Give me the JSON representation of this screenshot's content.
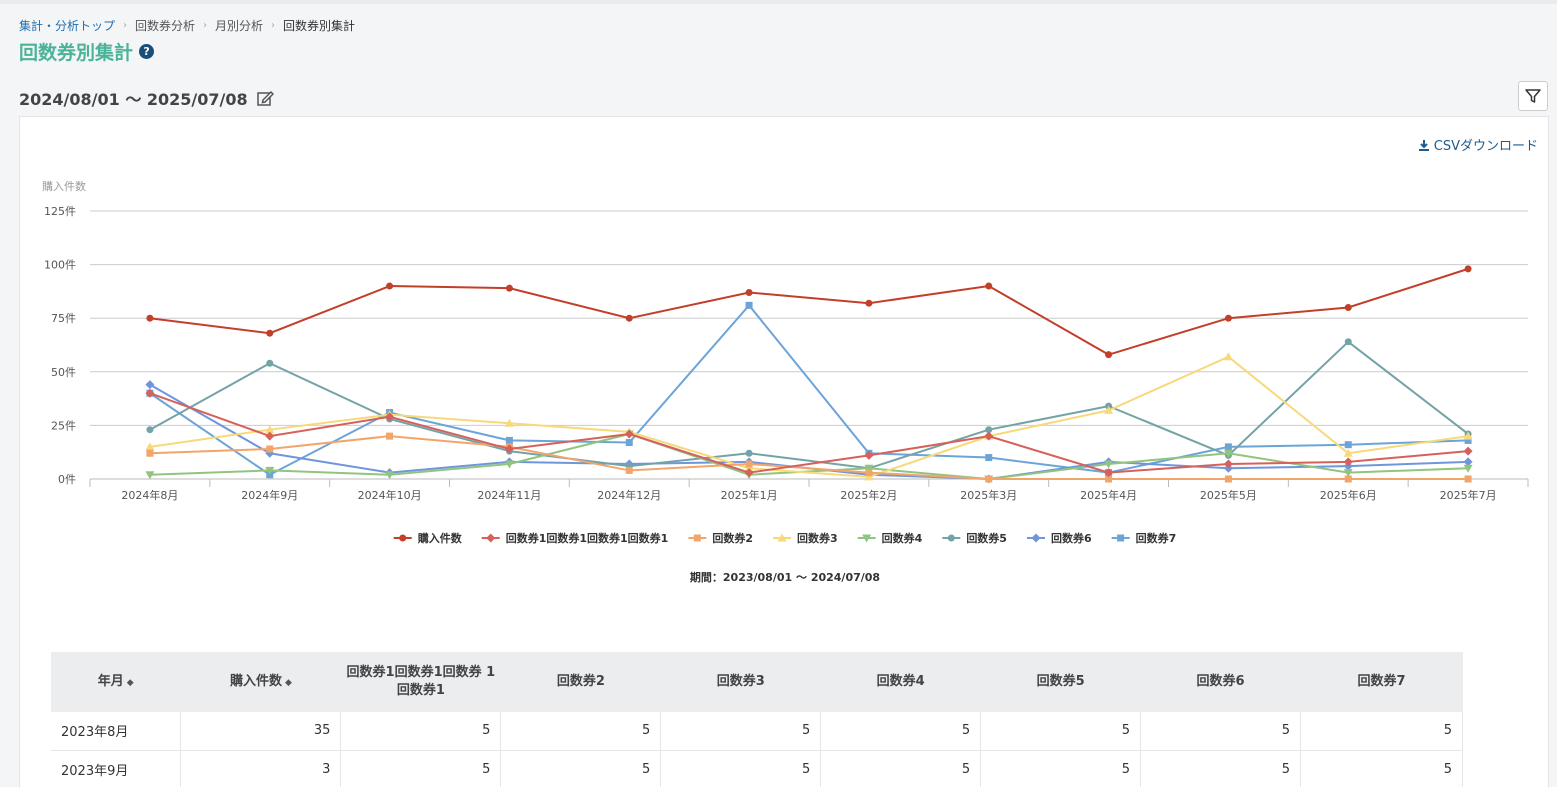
{
  "breadcrumb": {
    "items": [
      "集計・分析トップ",
      "回数券分析",
      "月別分析",
      "回数券別集計"
    ]
  },
  "page": {
    "title": "回数券別集計",
    "help_glyph": "?",
    "date_range": "2024/08/01 〜 2025/07/08"
  },
  "actions": {
    "csv_label": "CSVダウンロード"
  },
  "chart_data": {
    "type": "line",
    "ylabel": "購入件数",
    "ylim": [
      0,
      125
    ],
    "yticks": [
      "0件",
      "25件",
      "50件",
      "75件",
      "100件",
      "125件"
    ],
    "ytick_values": [
      0,
      25,
      50,
      75,
      100,
      125
    ],
    "grid": true,
    "legend": "bottom",
    "categories": [
      "2024年8月",
      "2024年9月",
      "2024年10月",
      "2024年11月",
      "2024年12月",
      "2025年1月",
      "2025年2月",
      "2025年3月",
      "2025年4月",
      "2025年5月",
      "2025年6月",
      "2025年7月"
    ],
    "series": [
      {
        "name": "購入件数",
        "color": "#c23f2a",
        "marker": "circle",
        "values": [
          75,
          68,
          90,
          89,
          75,
          87,
          82,
          90,
          58,
          75,
          80,
          98
        ]
      },
      {
        "name": "回数券1回数券1回数券1回数券1",
        "color": "#d6605a",
        "marker": "diamond",
        "values": [
          40,
          20,
          29,
          14,
          21,
          3,
          11,
          20,
          3,
          7,
          8,
          13
        ]
      },
      {
        "name": "回数券2",
        "color": "#f2a56b",
        "marker": "square",
        "values": [
          12,
          14,
          20,
          15,
          4,
          7,
          3,
          0,
          0,
          0,
          0,
          0
        ]
      },
      {
        "name": "回数券3",
        "color": "#f7d97a",
        "marker": "triangle",
        "values": [
          15,
          23,
          30,
          26,
          22,
          5,
          1,
          20,
          32,
          57,
          12,
          20
        ]
      },
      {
        "name": "回数券4",
        "color": "#8fc57e",
        "marker": "triangle-down",
        "values": [
          2,
          4,
          2,
          7,
          21,
          2,
          5,
          0,
          7,
          12,
          3,
          5
        ]
      },
      {
        "name": "回数券5",
        "color": "#73a3a6",
        "marker": "circle",
        "values": [
          23,
          54,
          28,
          13,
          6,
          12,
          5,
          23,
          34,
          11,
          64,
          21
        ]
      },
      {
        "name": "回数券6",
        "color": "#6f96dc",
        "marker": "diamond",
        "values": [
          44,
          12,
          3,
          8,
          7,
          8,
          2,
          0,
          8,
          5,
          6,
          8
        ]
      },
      {
        "name": "回数券7",
        "color": "#6ca4d8",
        "marker": "square",
        "values": [
          40,
          2,
          31,
          18,
          17,
          81,
          12,
          10,
          3,
          15,
          16,
          18
        ]
      }
    ]
  },
  "period_label": "期間：2023/08/01 〜 2024/07/08",
  "table": {
    "sort_glyph": "◆",
    "headers": [
      {
        "label": "年月",
        "sortable": true
      },
      {
        "label": "購入件数",
        "sortable": true
      },
      {
        "label": "回数券1回数券1回数券 1回数券1",
        "sortable": false
      },
      {
        "label": "回数券2",
        "sortable": false
      },
      {
        "label": "回数券3",
        "sortable": false
      },
      {
        "label": "回数券4",
        "sortable": false
      },
      {
        "label": "回数券5",
        "sortable": false
      },
      {
        "label": "回数券6",
        "sortable": false
      },
      {
        "label": "回数券7",
        "sortable": false
      }
    ],
    "rows": [
      [
        "2023年8月",
        "35",
        "5",
        "5",
        "5",
        "5",
        "5",
        "5",
        "5"
      ],
      [
        "2023年9月",
        "3",
        "5",
        "5",
        "5",
        "5",
        "5",
        "5",
        "5"
      ]
    ]
  }
}
